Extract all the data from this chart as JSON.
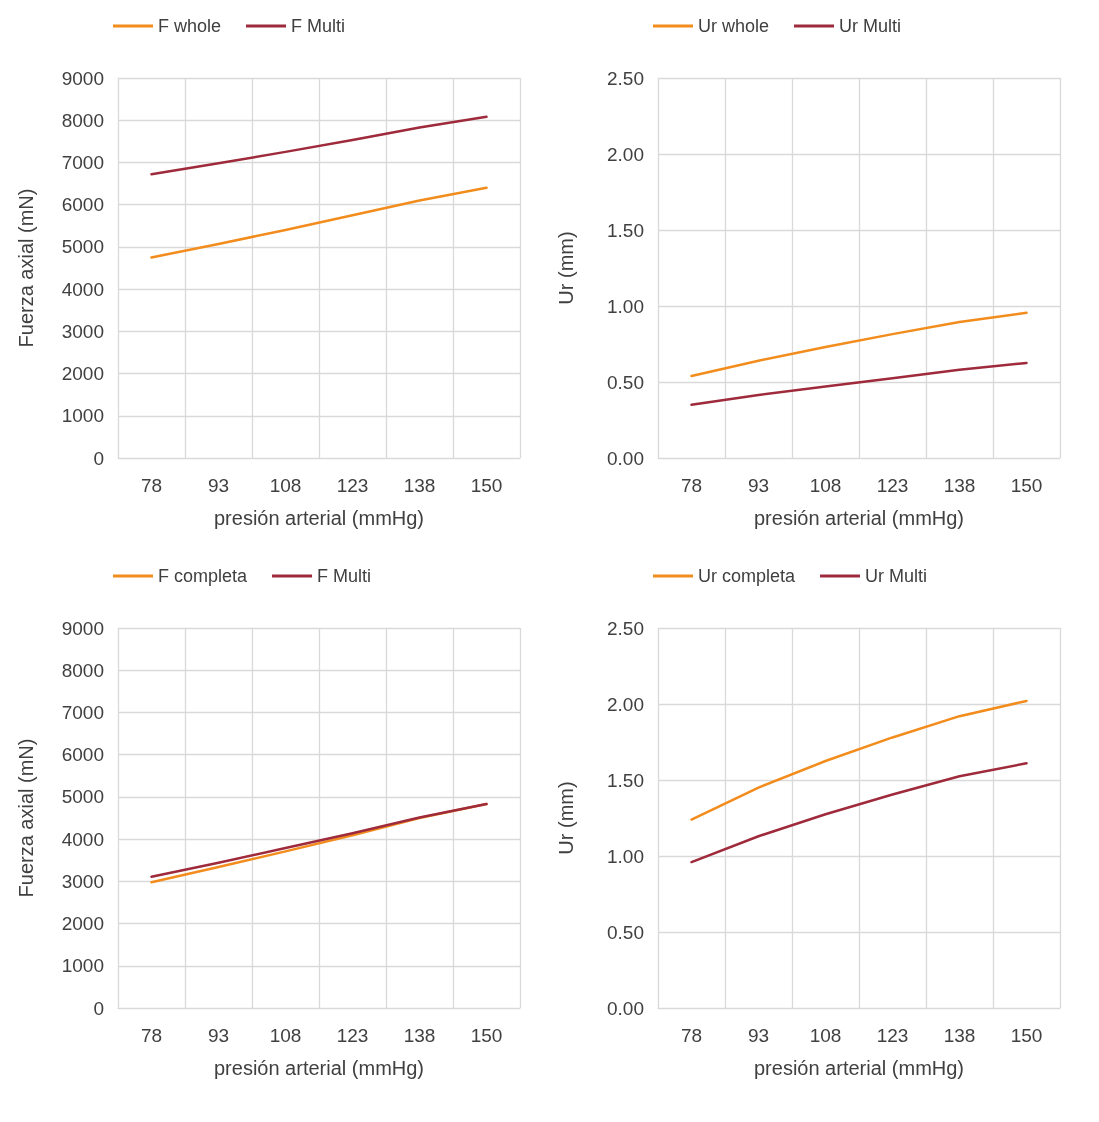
{
  "chart_data": [
    {
      "type": "line",
      "xlabel": "presión arterial (mmHg)",
      "ylabel": "Fuerza axial (mN)",
      "categories": [
        "78",
        "93",
        "108",
        "123",
        "138",
        "150"
      ],
      "ylim": [
        0,
        9000
      ],
      "yticks": [
        0,
        1000,
        2000,
        3000,
        4000,
        5000,
        6000,
        7000,
        8000,
        9000
      ],
      "grid": true,
      "legend": "top",
      "marker": "none",
      "line_style": "solid",
      "series": [
        {
          "name": "F whole",
          "color": "#f28c1c",
          "values": [
            4750,
            5070,
            5400,
            5750,
            6100,
            6400
          ]
        },
        {
          "name": "F Multi",
          "color": "#9e2a3c",
          "values": [
            6720,
            6980,
            7250,
            7530,
            7830,
            8080
          ]
        }
      ]
    },
    {
      "type": "line",
      "xlabel": "presión arterial (mmHg)",
      "ylabel": "Ur (mm)",
      "categories": [
        "78",
        "93",
        "108",
        "123",
        "138",
        "150"
      ],
      "ylim": [
        0,
        2.5
      ],
      "yticks": [
        {
          "value": 0,
          "label": "0.00"
        },
        {
          "value": 0.5,
          "label": "0.50"
        },
        {
          "value": 1,
          "label": "1.00"
        },
        {
          "value": 1.5,
          "label": "1.50"
        },
        {
          "value": 2,
          "label": "2.00"
        },
        {
          "value": 2.5,
          "label": "2.50"
        }
      ],
      "grid": true,
      "legend": "top",
      "marker": "none",
      "line_style": "solid",
      "series": [
        {
          "name": "Ur whole",
          "color": "#f28c1c",
          "values": [
            0.54,
            0.64,
            0.73,
            0.815,
            0.895,
            0.955
          ]
        },
        {
          "name": "Ur Multi",
          "color": "#9e2a3c",
          "values": [
            0.35,
            0.415,
            0.47,
            0.525,
            0.58,
            0.625
          ]
        }
      ]
    },
    {
      "type": "line",
      "xlabel": "presión arterial (mmHg)",
      "ylabel": "Fuerza axial (mN)",
      "categories": [
        "78",
        "93",
        "108",
        "123",
        "138",
        "150"
      ],
      "ylim": [
        0,
        9000
      ],
      "yticks": [
        0,
        1000,
        2000,
        3000,
        4000,
        5000,
        6000,
        7000,
        8000,
        9000
      ],
      "grid": true,
      "legend": "top",
      "marker": "none",
      "line_style": "solid",
      "series": [
        {
          "name": "F completa",
          "color": "#f28c1c",
          "values": [
            2980,
            3340,
            3710,
            4090,
            4500,
            4830
          ]
        },
        {
          "name": "F Multi",
          "color": "#9e2a3c",
          "values": [
            3110,
            3440,
            3790,
            4140,
            4510,
            4830
          ]
        }
      ]
    },
    {
      "type": "line",
      "xlabel": "presión arterial (mmHg)",
      "ylabel": "Ur (mm)",
      "categories": [
        "78",
        "93",
        "108",
        "123",
        "138",
        "150"
      ],
      "ylim": [
        0,
        2.5
      ],
      "yticks": [
        {
          "value": 0,
          "label": "0.00"
        },
        {
          "value": 0.5,
          "label": "0.50"
        },
        {
          "value": 1,
          "label": "1.00"
        },
        {
          "value": 1.5,
          "label": "1.50"
        },
        {
          "value": 2,
          "label": "2.00"
        },
        {
          "value": 2.5,
          "label": "2.50"
        }
      ],
      "grid": true,
      "legend": "top",
      "marker": "none",
      "line_style": "solid",
      "series": [
        {
          "name": "Ur completa",
          "color": "#f28c1c",
          "values": [
            1.24,
            1.45,
            1.625,
            1.78,
            1.92,
            2.02
          ]
        },
        {
          "name": "Ur Multi",
          "color": "#9e2a3c",
          "values": [
            0.96,
            1.13,
            1.275,
            1.405,
            1.525,
            1.61
          ]
        }
      ]
    }
  ]
}
